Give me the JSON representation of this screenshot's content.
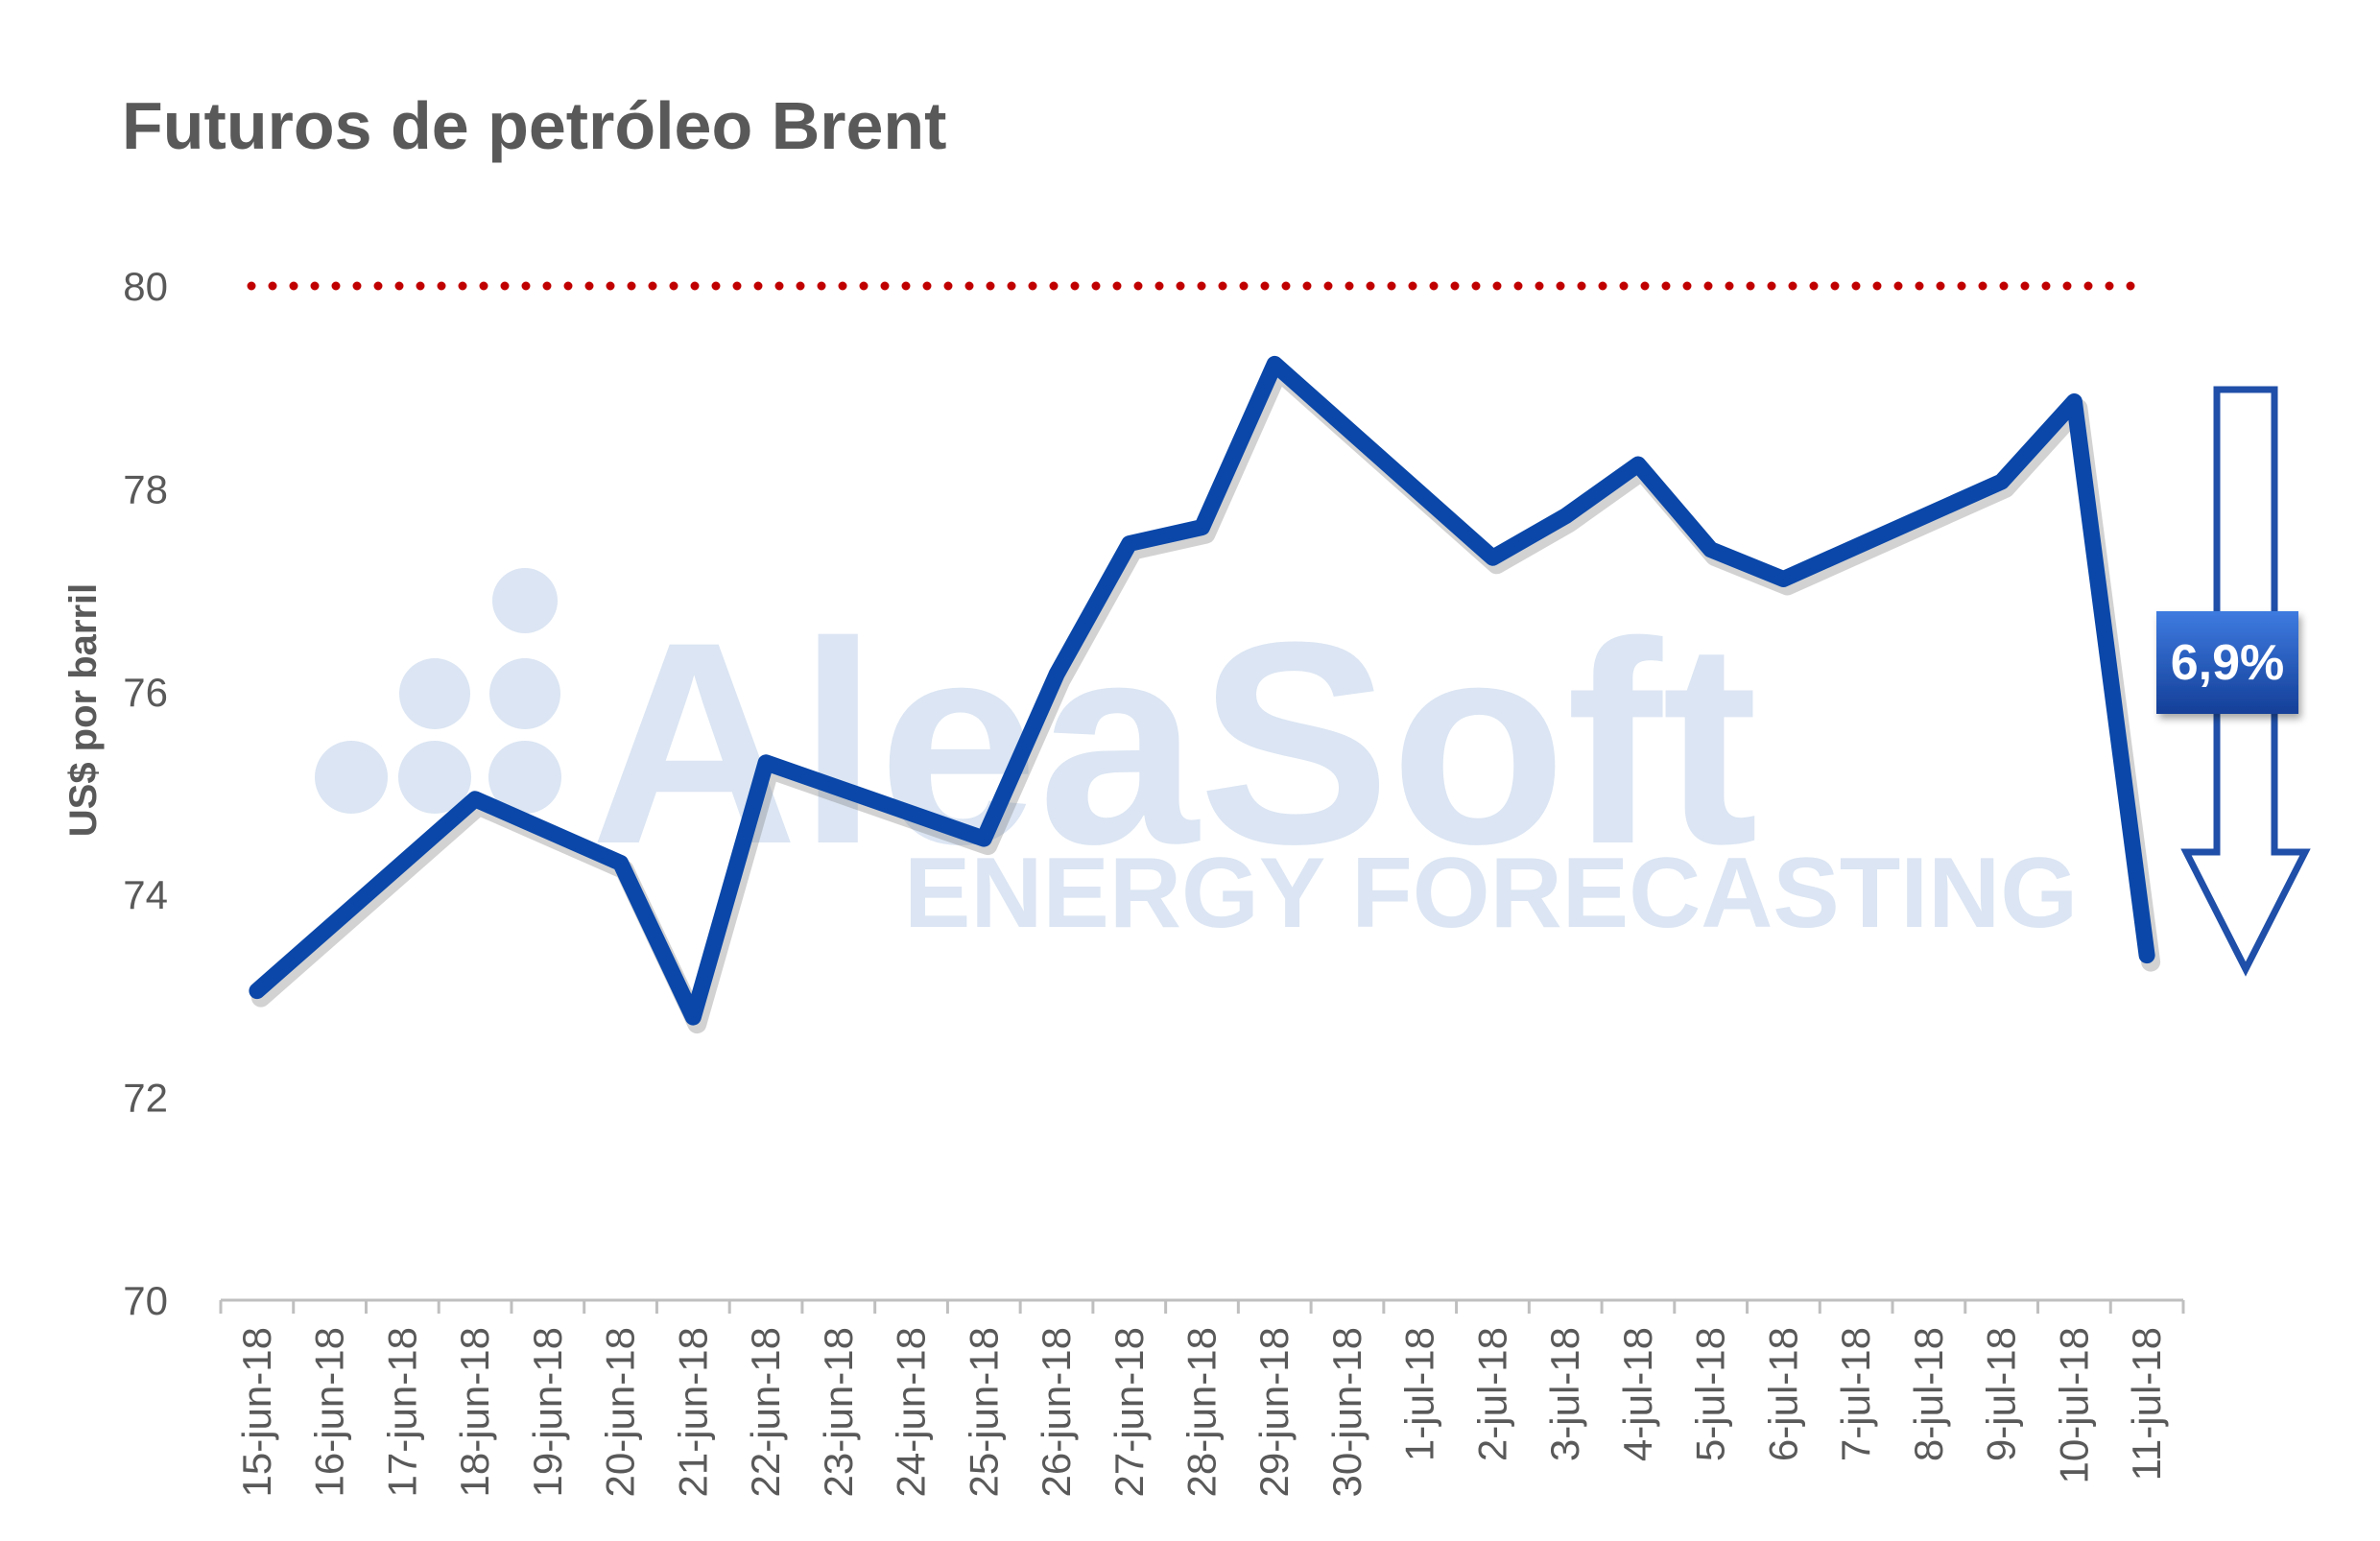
{
  "chart_data": {
    "type": "line",
    "title": "Futuros de petróleo Brent",
    "ylabel": "US$ por barril",
    "xlabel": "",
    "ylim": [
      70,
      80
    ],
    "yticks": [
      "70",
      "72",
      "74",
      "76",
      "78",
      "80"
    ],
    "categories": [
      "15-jun-18",
      "16-jun-18",
      "17-jun-18",
      "18-jun-18",
      "19-jun-18",
      "20-jun-18",
      "21-jun-18",
      "22-jun-18",
      "23-jun-18",
      "24-jun-18",
      "25-jun-18",
      "26-jun-18",
      "27-jun-18",
      "28-jun-18",
      "29-jun-18",
      "30-jun-18",
      "1-jul-18",
      "2-jul-18",
      "3-jul-18",
      "4-jul-18",
      "5-jul-18",
      "6-jul-18",
      "7-jul-18",
      "8-jul-18",
      "9-jul-18",
      "10-jul-18",
      "11-jul-18"
    ],
    "series": [
      {
        "values": [
          73.05,
          null,
          null,
          74.94,
          null,
          74.31,
          72.79,
          75.3,
          null,
          null,
          74.55,
          76.17,
          77.46,
          77.62,
          79.23,
          null,
          null,
          77.32,
          77.73,
          78.24,
          77.4,
          77.11,
          null,
          null,
          78.07,
          78.86,
          73.4
        ],
        "color": "#0a47a9"
      }
    ],
    "reference_line": {
      "value": 80,
      "style": "dotted",
      "color": "#c00000"
    },
    "annotation": {
      "label": "6,9%",
      "type": "down-arrow",
      "color": "#1f4fa8"
    },
    "grid": false,
    "legend": "none"
  },
  "watermark": {
    "brand": "AleaSoft",
    "tagline": "ENERGY FORECASTING"
  }
}
